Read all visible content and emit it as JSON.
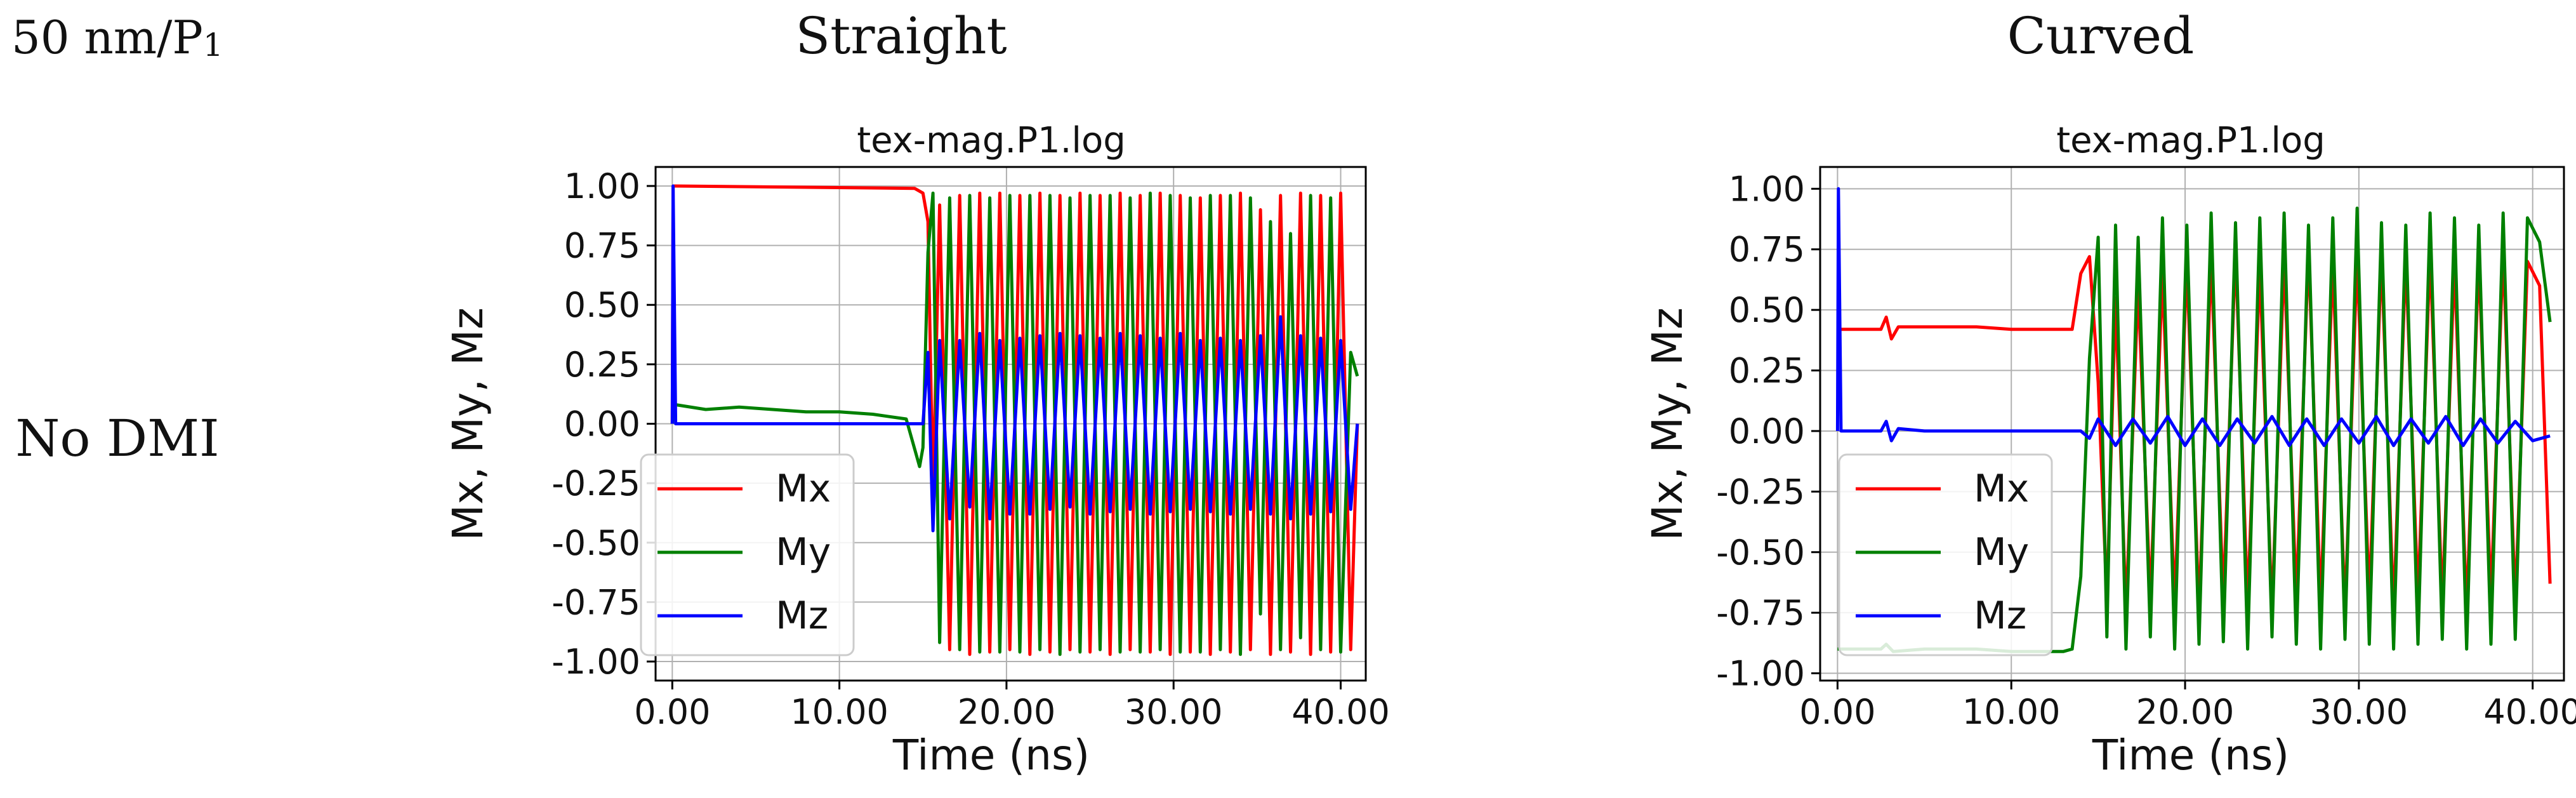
{
  "figure": {
    "corner_label": "50 nm/P",
    "corner_label_subscript": "1",
    "column_titles": [
      "Straight",
      "Curved"
    ],
    "row_title": "No DMI"
  },
  "chart_data": [
    {
      "type": "line",
      "title": "tex-mag.P1.log",
      "xlabel": "Time (ns)",
      "ylabel": "Mx, My, Mz",
      "xlim": [
        -1.0,
        41.5
      ],
      "ylim": [
        -1.08,
        1.08
      ],
      "xticks": [
        0,
        10,
        20,
        30,
        40
      ],
      "xtick_labels": [
        "0.00",
        "10.00",
        "20.00",
        "30.00",
        "40.00"
      ],
      "yticks": [
        1.0,
        0.75,
        0.5,
        0.25,
        0.0,
        -0.25,
        -0.5,
        -0.75,
        -1.0
      ],
      "ytick_labels": [
        "1.00",
        "0.75",
        "0.50",
        "0.25",
        "0.00",
        "-0.25",
        "-0.50",
        "-0.75",
        "-1.00"
      ],
      "grid": true,
      "legend_position": "lower-left",
      "colors": {
        "Mx": "#ff0000",
        "My": "#008000",
        "Mz": "#0000ff"
      },
      "series": [
        {
          "name": "Mx",
          "x": [
            0,
            0.05,
            0.2,
            14.5,
            15.0,
            15.3,
            15.6,
            16.0,
            16.6,
            17.2,
            17.8,
            18.4,
            19.0,
            19.6,
            20.2,
            20.8,
            21.4,
            22.0,
            22.6,
            23.2,
            23.8,
            24.4,
            25.0,
            25.6,
            26.2,
            26.8,
            27.4,
            28.0,
            28.6,
            29.2,
            29.8,
            30.4,
            31.0,
            31.6,
            32.2,
            32.8,
            33.4,
            34.0,
            34.6,
            35.2,
            35.8,
            36.4,
            37.0,
            37.6,
            38.2,
            38.8,
            39.4,
            40.0,
            40.6,
            41.0
          ],
          "values": [
            0.0,
            1.0,
            1.0,
            0.99,
            0.97,
            0.85,
            -0.3,
            0.92,
            -0.95,
            0.96,
            -0.97,
            0.97,
            -0.96,
            0.97,
            -0.95,
            0.96,
            -0.97,
            0.97,
            -0.96,
            0.96,
            -0.95,
            0.97,
            -0.96,
            0.96,
            -0.97,
            0.97,
            -0.95,
            0.96,
            -0.96,
            0.97,
            -0.97,
            0.96,
            -0.96,
            0.95,
            -0.97,
            0.96,
            -0.96,
            0.97,
            -0.95,
            0.9,
            -0.97,
            0.96,
            -0.96,
            0.97,
            -0.97,
            0.96,
            -0.96,
            0.97,
            -0.95,
            0.0
          ]
        },
        {
          "name": "My",
          "x": [
            0,
            0.05,
            0.2,
            2,
            4,
            6,
            8,
            10,
            12,
            14,
            14.8,
            15.0,
            15.3,
            15.6,
            16.0,
            16.6,
            17.2,
            17.8,
            18.4,
            19.0,
            19.6,
            20.2,
            20.8,
            21.4,
            22.0,
            22.6,
            23.2,
            23.8,
            24.4,
            25.0,
            25.6,
            26.2,
            26.8,
            27.4,
            28.0,
            28.6,
            29.2,
            29.8,
            30.4,
            31.0,
            31.6,
            32.2,
            32.8,
            33.4,
            34.0,
            34.6,
            35.2,
            35.8,
            36.4,
            37.0,
            37.6,
            38.2,
            38.8,
            39.4,
            40.0,
            40.6,
            41.0
          ],
          "values": [
            0.0,
            0.05,
            0.08,
            0.06,
            0.07,
            0.06,
            0.05,
            0.05,
            0.04,
            0.02,
            -0.18,
            -0.1,
            0.72,
            0.97,
            -0.92,
            0.95,
            -0.95,
            0.96,
            -0.96,
            0.95,
            -0.96,
            0.96,
            -0.96,
            0.96,
            -0.95,
            0.96,
            -0.97,
            0.95,
            -0.96,
            0.96,
            -0.95,
            0.96,
            -0.96,
            0.95,
            -0.96,
            0.97,
            -0.95,
            0.96,
            -0.96,
            0.95,
            -0.96,
            0.96,
            -0.95,
            0.96,
            -0.97,
            0.95,
            -0.8,
            0.85,
            -0.95,
            0.8,
            -0.9,
            0.96,
            -0.95,
            0.95,
            -0.96,
            0.3,
            0.2
          ]
        },
        {
          "name": "Mz",
          "x": [
            0,
            0.05,
            0.2,
            2,
            4,
            6,
            8,
            10,
            12,
            14,
            15.0,
            15.3,
            15.6,
            16.0,
            16.6,
            17.2,
            17.8,
            18.4,
            19.0,
            19.6,
            20.2,
            20.8,
            21.4,
            22.0,
            22.6,
            23.2,
            23.8,
            24.4,
            25.0,
            25.6,
            26.2,
            26.8,
            27.4,
            28.0,
            28.6,
            29.2,
            29.8,
            30.4,
            31.0,
            31.6,
            32.2,
            32.8,
            33.4,
            34.0,
            34.6,
            35.2,
            35.8,
            36.4,
            37.0,
            37.6,
            38.2,
            38.8,
            39.4,
            40.0,
            40.6,
            41.0
          ],
          "values": [
            0.0,
            1.0,
            0.0,
            0.0,
            0.0,
            0.0,
            0.0,
            0.0,
            0.0,
            0.0,
            0.0,
            0.3,
            -0.45,
            0.35,
            -0.4,
            0.35,
            -0.35,
            0.38,
            -0.4,
            0.35,
            -0.38,
            0.36,
            -0.38,
            0.37,
            -0.36,
            0.38,
            -0.35,
            0.37,
            -0.38,
            0.36,
            -0.37,
            0.38,
            -0.36,
            0.37,
            -0.38,
            0.36,
            -0.37,
            0.38,
            -0.36,
            0.35,
            -0.37,
            0.36,
            -0.38,
            0.35,
            -0.36,
            0.37,
            -0.38,
            0.45,
            -0.4,
            0.37,
            -0.38,
            0.36,
            -0.37,
            0.35,
            -0.36,
            0.0
          ]
        }
      ]
    },
    {
      "type": "line",
      "title": "tex-mag.P1.log",
      "xlabel": "Time (ns)",
      "ylabel": "Mx, My, Mz",
      "xlim": [
        -1.0,
        41.8
      ],
      "ylim": [
        -1.03,
        1.09
      ],
      "xticks": [
        0,
        10,
        20,
        30,
        40
      ],
      "xtick_labels": [
        "0.00",
        "10.00",
        "20.00",
        "30.00",
        "40.00"
      ],
      "yticks": [
        1.0,
        0.75,
        0.5,
        0.25,
        0.0,
        -0.25,
        -0.5,
        -0.75,
        -1.0
      ],
      "ytick_labels": [
        "1.00",
        "0.75",
        "0.50",
        "0.25",
        "0.00",
        "-0.25",
        "-0.50",
        "-0.75",
        "-1.00"
      ],
      "grid": true,
      "legend_position": "lower-left",
      "colors": {
        "Mx": "#ff0000",
        "My": "#008000",
        "Mz": "#0000ff"
      },
      "series": [
        {
          "name": "Mx",
          "x": [
            0,
            2.5,
            2.8,
            3.1,
            3.5,
            5,
            8,
            10,
            12,
            13.0,
            13.5,
            14.0,
            14.5,
            15.0,
            15.5,
            16.0,
            16.6,
            17.3,
            18.0,
            18.7,
            19.4,
            20.1,
            20.8,
            21.5,
            22.2,
            22.9,
            23.6,
            24.3,
            25.0,
            25.7,
            26.4,
            27.1,
            27.8,
            28.5,
            29.2,
            29.9,
            30.6,
            31.3,
            32.0,
            32.7,
            33.4,
            34.1,
            34.8,
            35.5,
            36.2,
            36.9,
            37.6,
            38.3,
            39.0,
            39.7,
            40.4,
            41.0
          ],
          "values": [
            0.42,
            0.42,
            0.47,
            0.38,
            0.43,
            0.43,
            0.43,
            0.42,
            0.42,
            0.42,
            0.42,
            0.65,
            0.72,
            0.2,
            -0.7,
            0.55,
            -0.75,
            0.6,
            -0.7,
            0.65,
            -0.72,
            0.7,
            -0.75,
            0.72,
            -0.7,
            0.75,
            -0.72,
            0.68,
            -0.75,
            0.72,
            -0.7,
            0.75,
            -0.72,
            0.7,
            -0.75,
            0.72,
            -0.7,
            0.73,
            -0.75,
            0.72,
            -0.7,
            0.74,
            -0.72,
            0.7,
            -0.75,
            0.72,
            -0.7,
            0.75,
            -0.72,
            0.7,
            0.6,
            -0.63
          ]
        },
        {
          "name": "My",
          "x": [
            0,
            2.5,
            2.8,
            3.2,
            5,
            8,
            10,
            12,
            13.0,
            13.5,
            14.0,
            14.5,
            15.0,
            15.5,
            16.0,
            16.6,
            17.3,
            18.0,
            18.7,
            19.4,
            20.1,
            20.8,
            21.5,
            22.2,
            22.9,
            23.6,
            24.3,
            25.0,
            25.7,
            26.4,
            27.1,
            27.8,
            28.5,
            29.2,
            29.9,
            30.6,
            31.3,
            32.0,
            32.7,
            33.4,
            34.1,
            34.8,
            35.5,
            36.2,
            36.9,
            37.6,
            38.3,
            39.0,
            39.7,
            40.4,
            41.0
          ],
          "values": [
            -0.9,
            -0.9,
            -0.88,
            -0.91,
            -0.9,
            -0.9,
            -0.91,
            -0.91,
            -0.91,
            -0.9,
            -0.6,
            0.3,
            0.8,
            -0.85,
            0.85,
            -0.9,
            0.8,
            -0.85,
            0.88,
            -0.9,
            0.85,
            -0.88,
            0.9,
            -0.87,
            0.86,
            -0.9,
            0.88,
            -0.85,
            0.9,
            -0.88,
            0.85,
            -0.9,
            0.88,
            -0.86,
            0.92,
            -0.88,
            0.86,
            -0.9,
            0.85,
            -0.88,
            0.9,
            -0.86,
            0.88,
            -0.9,
            0.85,
            -0.88,
            0.9,
            -0.86,
            0.88,
            0.78,
            0.45
          ]
        },
        {
          "name": "Mz",
          "x": [
            0,
            0.05,
            0.2,
            2.5,
            2.8,
            3.1,
            3.5,
            5,
            8,
            10,
            13.5,
            14.0,
            14.5,
            15.0,
            16.0,
            17.0,
            18.0,
            19.0,
            20.0,
            21.0,
            22.0,
            23.0,
            24.0,
            25.0,
            26.0,
            27.0,
            28.0,
            29.0,
            30.0,
            31.0,
            32.0,
            33.0,
            34.0,
            35.0,
            36.0,
            37.0,
            38.0,
            39.0,
            40.0,
            41.0
          ],
          "values": [
            0.0,
            1.0,
            0.0,
            0.0,
            0.04,
            -0.04,
            0.01,
            0.0,
            0.0,
            0.0,
            0.0,
            0.0,
            -0.03,
            0.05,
            -0.06,
            0.05,
            -0.05,
            0.06,
            -0.06,
            0.05,
            -0.06,
            0.05,
            -0.05,
            0.06,
            -0.06,
            0.05,
            -0.06,
            0.05,
            -0.05,
            0.06,
            -0.06,
            0.05,
            -0.05,
            0.06,
            -0.06,
            0.05,
            -0.05,
            0.04,
            -0.04,
            -0.02
          ]
        }
      ]
    }
  ]
}
